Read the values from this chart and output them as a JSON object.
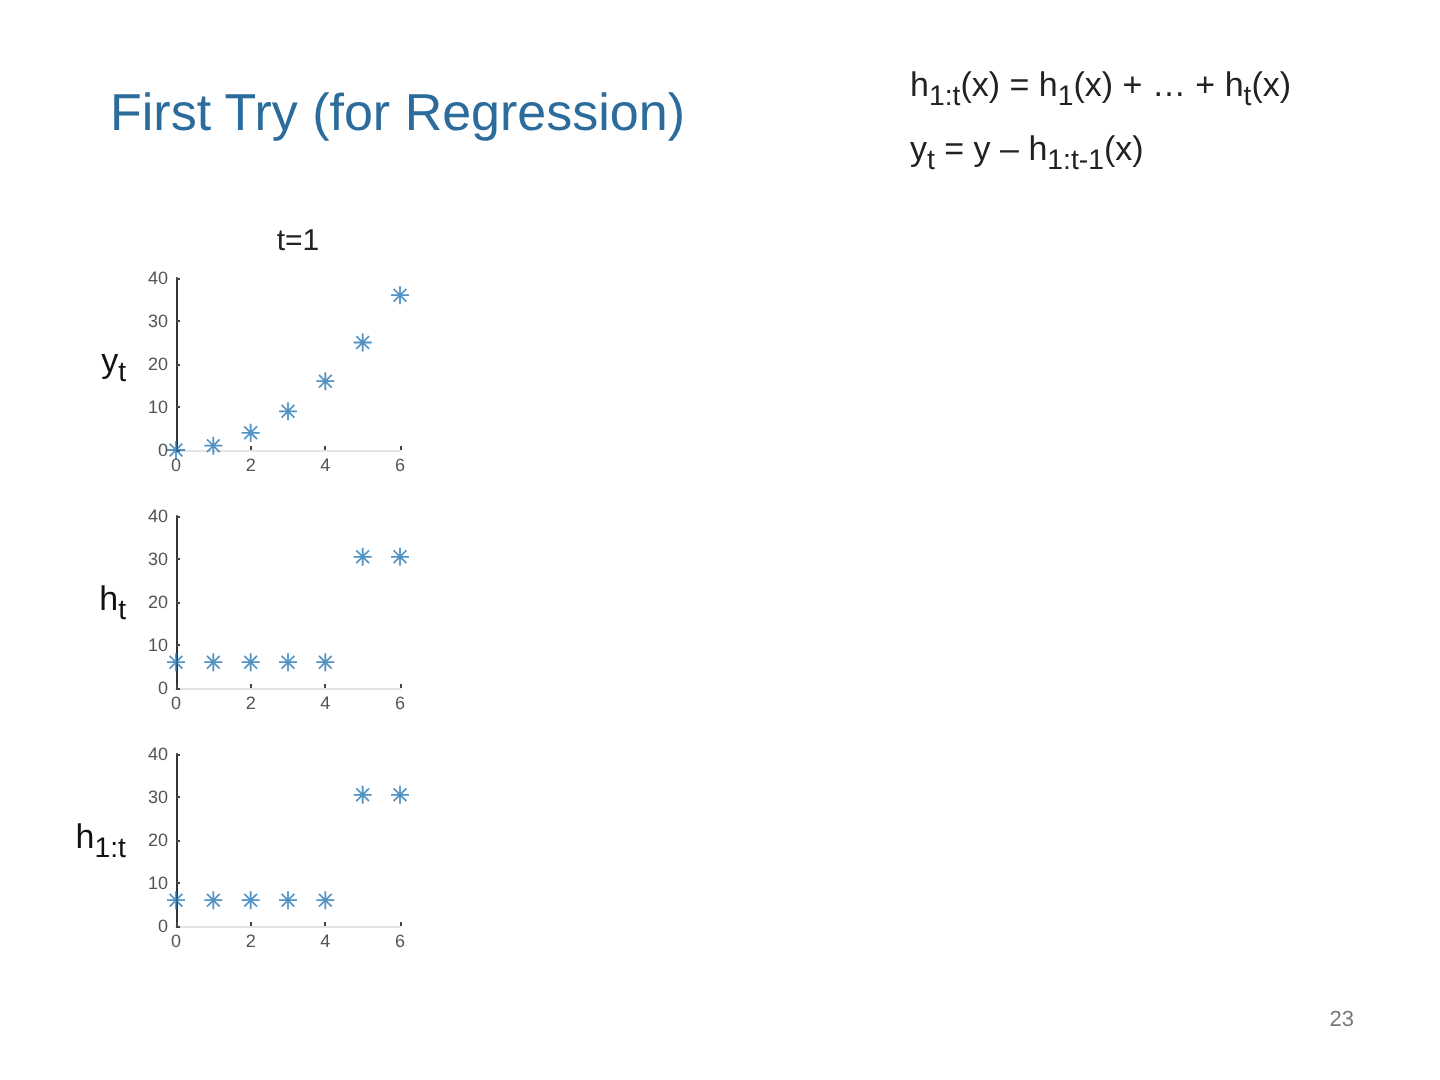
{
  "chart_data": [
    {
      "type": "scatter",
      "title": "First Try (for Regression)",
      "subtitle": "t=1",
      "ylabel": "y$_{t}$",
      "x": [
        0,
        1,
        2,
        3,
        4,
        5,
        6
      ],
      "values": [
        0,
        1,
        4,
        9,
        16,
        25,
        36
      ],
      "color": "#2878b5",
      "marker": "star",
      "xlim": [
        0,
        6
      ],
      "ylim": [
        0,
        40
      ],
      "xticks": [
        0,
        2,
        4,
        6
      ],
      "yticks": [
        0,
        10,
        20,
        30,
        40
      ],
      "annotations": [
        "h$_{1:t}$(x) = h$_{1}$(x) + … + h$_{t}$(x)",
        "y$_{t}$ = y – h$_{1:t-1}$(x)"
      ]
    },
    {
      "type": "scatter",
      "ylabel": "h$_{t}$",
      "x": [
        0,
        1,
        2,
        3,
        4,
        5,
        6
      ],
      "values": [
        6,
        6,
        6,
        6,
        6,
        30.5,
        30.5
      ],
      "color": "#2878b5",
      "marker": "star",
      "xlim": [
        0,
        6
      ],
      "ylim": [
        0,
        40
      ],
      "xticks": [
        0,
        2,
        4,
        6
      ],
      "yticks": [
        0,
        10,
        20,
        30,
        40
      ]
    },
    {
      "type": "scatter",
      "ylabel": "h$_{1:t}$",
      "x": [
        0,
        1,
        2,
        3,
        4,
        5,
        6
      ],
      "values": [
        6,
        6,
        6,
        6,
        6,
        30.5,
        30.5
      ],
      "color": "#2878b5",
      "marker": "star",
      "xlim": [
        0,
        6
      ],
      "ylim": [
        0,
        40
      ],
      "xticks": [
        0,
        2,
        4,
        6
      ],
      "yticks": [
        0,
        10,
        20,
        30,
        40
      ],
      "annotations": [
        "23"
      ]
    }
  ]
}
